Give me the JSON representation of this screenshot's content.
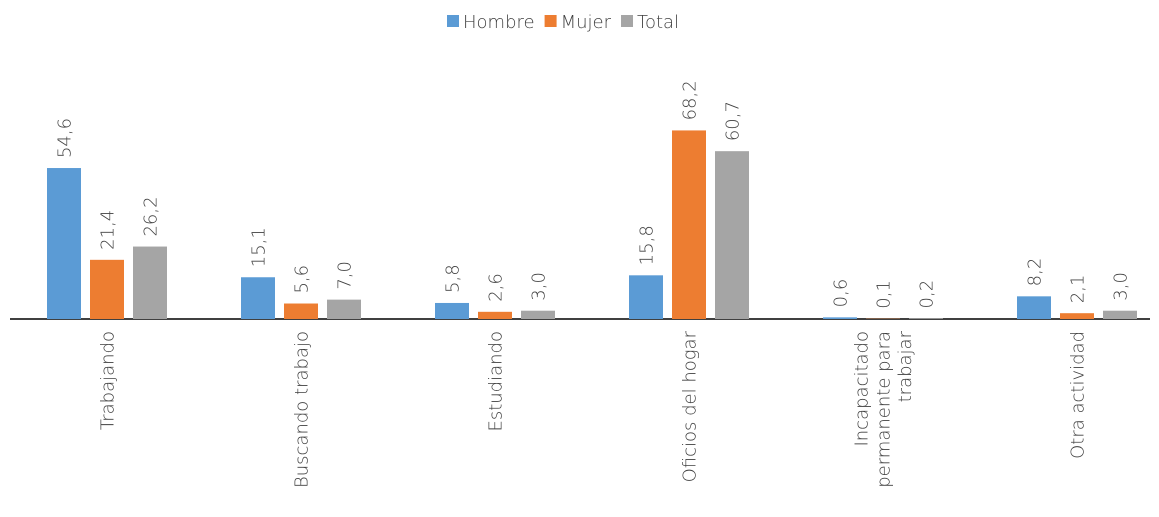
{
  "chart_data": {
    "type": "bar",
    "categories": [
      "Trabajando",
      "Buscando trabajo",
      "Estudiando",
      "Oficios del hogar",
      "Incapacitado\npermanente para\ntrabajar",
      "Otra actividad"
    ],
    "series": [
      {
        "name": "Hombre",
        "color": "#5b9bd5",
        "values": [
          54.6,
          15.1,
          5.8,
          15.8,
          0.6,
          8.2
        ],
        "value_labels": [
          "54,6",
          "15,1",
          "5,8",
          "15,8",
          "0,6",
          "8,2"
        ]
      },
      {
        "name": "Mujer",
        "color": "#ed7d31",
        "values": [
          21.4,
          5.6,
          2.6,
          68.2,
          0.1,
          2.1
        ],
        "value_labels": [
          "21,4",
          "5,6",
          "2,6",
          "68,2",
          "0,1",
          "2,1"
        ]
      },
      {
        "name": "Total",
        "color": "#a5a5a5",
        "values": [
          26.2,
          7.0,
          3.0,
          60.7,
          0.2,
          3.0
        ],
        "value_labels": [
          "26,2",
          "7,0",
          "3,0",
          "60,7",
          "0,2",
          "3,0"
        ]
      }
    ]
  }
}
